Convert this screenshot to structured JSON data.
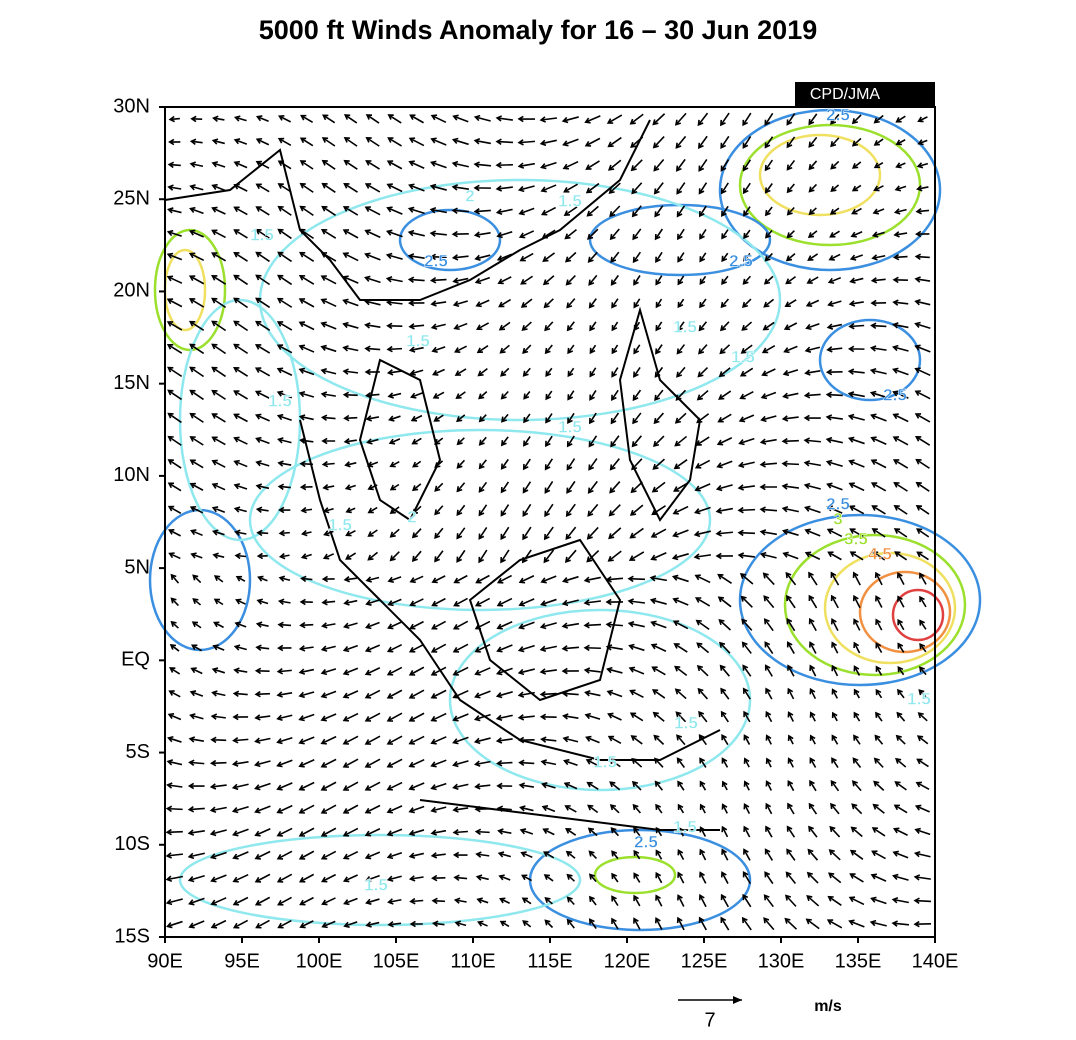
{
  "title": "5000 ft Winds Anomaly for 16 – 30 Jun 2019",
  "source": "CPD/JMA",
  "map": {
    "lat_ticks": [
      "30N",
      "25N",
      "20N",
      "15N",
      "10N",
      "5N",
      "EQ",
      "5S",
      "10S",
      "15S"
    ],
    "lon_ticks": [
      "90E",
      "95E",
      "100E",
      "105E",
      "110E",
      "115E",
      "120E",
      "125E",
      "130E",
      "135E",
      "140E"
    ],
    "contour_labels": [
      {
        "label": "2.5",
        "color": "#3b8fe0"
      },
      {
        "label": "1.5",
        "color": "#8ee8ee"
      },
      {
        "label": "2",
        "color": "#8ee8ee"
      },
      {
        "label": "1.5",
        "color": "#8ee8ee"
      },
      {
        "label": "2.5",
        "color": "#3b8fe0"
      },
      {
        "label": "2.5",
        "color": "#3b8fe0"
      },
      {
        "label": "1.5",
        "color": "#8ee8ee"
      },
      {
        "label": "1.5",
        "color": "#8ee8ee"
      },
      {
        "label": "1.5",
        "color": "#8ee8ee"
      },
      {
        "label": "2.5",
        "color": "#3b8fe0"
      },
      {
        "label": "1.5",
        "color": "#8ee8ee"
      },
      {
        "label": "1.5",
        "color": "#8ee8ee"
      },
      {
        "label": "1.5",
        "color": "#8ee8ee"
      },
      {
        "label": "2",
        "color": "#8ee8ee"
      },
      {
        "label": "2.5",
        "color": "#3b8fe0"
      },
      {
        "label": "3",
        "color": "#9be02c"
      },
      {
        "label": "3.5",
        "color": "#9be02c"
      },
      {
        "label": "4.5",
        "color": "#f09040"
      },
      {
        "label": "1.5",
        "color": "#8ee8ee"
      },
      {
        "label": "1.5",
        "color": "#8ee8ee"
      },
      {
        "label": "1.5",
        "color": "#8ee8ee"
      },
      {
        "label": "2.5",
        "color": "#3b8fe0"
      },
      {
        "label": "1.5",
        "color": "#8ee8ee"
      },
      {
        "label": "1.5",
        "color": "#8ee8ee"
      }
    ]
  },
  "legend": {
    "reference": "7",
    "unit": "m/s"
  }
}
